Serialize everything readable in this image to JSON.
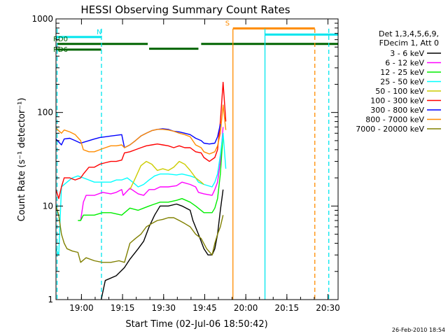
{
  "chart_data": {
    "type": "line",
    "title": "HESSI Observing Summary Count Rates",
    "xlabel": "Start Time (02-Jul-06 18:50:42)",
    "ylabel": "Count Rate (s⁻¹ detector⁻¹)",
    "y_scale": "log",
    "ylim": [
      1,
      1000
    ],
    "x_unit": "minutes after 18:50:42",
    "xlim": [
      0,
      103
    ],
    "x_ticks": [
      {
        "label": "19:00",
        "value": 9.3
      },
      {
        "label": "19:15",
        "value": 24.3
      },
      {
        "label": "19:30",
        "value": 39.3
      },
      {
        "label": "19:45",
        "value": 54.3
      },
      {
        "label": "20:00",
        "value": 69.3
      },
      {
        "label": "20:15",
        "value": 84.3
      },
      {
        "label": "20:30",
        "value": 99.3
      }
    ],
    "y_ticks": [
      {
        "label": "1",
        "value": 1
      },
      {
        "label": "10",
        "value": 10
      },
      {
        "label": "100",
        "value": 100
      },
      {
        "label": "1000",
        "value": 1000
      }
    ],
    "legend": {
      "placement": "right",
      "header": [
        "Det 1,3,4,5,6,9,",
        "FDecim 1, Att 0"
      ],
      "entries": [
        {
          "label": "3 - 6 keV",
          "color": "#000000"
        },
        {
          "label": "6 - 12 keV",
          "color": "#ff00ff"
        },
        {
          "label": "12 - 25 keV",
          "color": "#00ee00"
        },
        {
          "label": "25 - 50 keV",
          "color": "#00ffff"
        },
        {
          "label": "50 - 100 keV",
          "color": "#cccc00"
        },
        {
          "label": "100 - 300 keV",
          "color": "#ff0000"
        },
        {
          "label": "300 - 800 keV",
          "color": "#0000ff"
        },
        {
          "label": "800 - 7000 keV",
          "color": "#ff8c00"
        },
        {
          "label": "7000 - 20000 keV",
          "color": "#808000"
        }
      ]
    },
    "series": [
      {
        "name": "3 - 6 keV",
        "color": "#000000",
        "points": [
          [
            16.5,
            1
          ],
          [
            18,
            1.6
          ],
          [
            22,
            1.8
          ],
          [
            25,
            2.2
          ],
          [
            27,
            2.7
          ],
          [
            30,
            3.5
          ],
          [
            32,
            4.2
          ],
          [
            34,
            6
          ],
          [
            36,
            8
          ],
          [
            38,
            10
          ],
          [
            41,
            10
          ],
          [
            44,
            10.5
          ],
          [
            46,
            10
          ],
          [
            49,
            9
          ],
          [
            50,
            7
          ],
          [
            52,
            5
          ],
          [
            54,
            3.5
          ],
          [
            55.5,
            3
          ],
          [
            57,
            3
          ],
          [
            58,
            3.5
          ],
          [
            59,
            5
          ],
          [
            60,
            9
          ],
          [
            61,
            15
          ]
        ]
      },
      {
        "name": "6 - 12 keV",
        "color": "#ff00ff",
        "points": [
          [
            9,
            7
          ],
          [
            10,
            11
          ],
          [
            11,
            13
          ],
          [
            14,
            13
          ],
          [
            17,
            14
          ],
          [
            20,
            13.5
          ],
          [
            22,
            14
          ],
          [
            24,
            15
          ],
          [
            24.5,
            13
          ],
          [
            27,
            15.5
          ],
          [
            30,
            13.5
          ],
          [
            32,
            13
          ],
          [
            34,
            15
          ],
          [
            36,
            15
          ],
          [
            38,
            16
          ],
          [
            41,
            16
          ],
          [
            44,
            16.5
          ],
          [
            46,
            18
          ],
          [
            49,
            17
          ],
          [
            51,
            16
          ],
          [
            52,
            14
          ],
          [
            54,
            13.5
          ],
          [
            57,
            13
          ],
          [
            58,
            15
          ],
          [
            59,
            18
          ],
          [
            60,
            30
          ],
          [
            61,
            70
          ]
        ]
      },
      {
        "name": "12 - 25 keV",
        "color": "#00ee00",
        "points": [
          [
            8,
            7
          ],
          [
            9,
            7
          ],
          [
            10,
            8
          ],
          [
            14,
            8
          ],
          [
            17,
            8.5
          ],
          [
            20,
            8.5
          ],
          [
            24,
            8
          ],
          [
            27,
            9.5
          ],
          [
            30,
            9
          ],
          [
            32,
            9.5
          ],
          [
            34,
            10
          ],
          [
            36,
            10.5
          ],
          [
            38,
            11
          ],
          [
            41,
            11
          ],
          [
            44,
            11.5
          ],
          [
            46,
            12
          ],
          [
            49,
            11
          ],
          [
            51,
            10
          ],
          [
            54,
            8.5
          ],
          [
            57,
            8.5
          ],
          [
            58,
            9.5
          ],
          [
            59,
            12
          ],
          [
            60,
            22
          ],
          [
            61,
            60
          ]
        ]
      },
      {
        "name": "25 - 50 keV",
        "color": "#00ffff",
        "points": [
          [
            0,
            3.5
          ],
          [
            1,
            3
          ],
          [
            2,
            16
          ],
          [
            4,
            18
          ],
          [
            6,
            20
          ],
          [
            8,
            21
          ],
          [
            10,
            20
          ],
          [
            12,
            19
          ],
          [
            14,
            18
          ],
          [
            17,
            18
          ],
          [
            20,
            18
          ],
          [
            22,
            19
          ],
          [
            24,
            19
          ],
          [
            26,
            20
          ],
          [
            28,
            18
          ],
          [
            30,
            16
          ],
          [
            32,
            17
          ],
          [
            34,
            19
          ],
          [
            36,
            21
          ],
          [
            38,
            22
          ],
          [
            41,
            22
          ],
          [
            44,
            21.5
          ],
          [
            46,
            22
          ],
          [
            49,
            21
          ],
          [
            51,
            20
          ],
          [
            52,
            18
          ],
          [
            54,
            17
          ],
          [
            57,
            16
          ],
          [
            58,
            18
          ],
          [
            59,
            22
          ],
          [
            60,
            35
          ],
          [
            61,
            60
          ],
          [
            62,
            25
          ]
        ]
      },
      {
        "name": "50 - 100 keV",
        "color": "#cccc00",
        "points": [
          [
            27,
            15
          ],
          [
            29,
            20
          ],
          [
            31,
            27
          ],
          [
            33,
            30
          ],
          [
            35,
            28
          ],
          [
            37,
            24
          ],
          [
            39,
            25
          ],
          [
            41,
            24
          ],
          [
            43,
            26
          ],
          [
            45,
            30
          ],
          [
            47,
            28
          ],
          [
            49,
            24
          ],
          [
            51,
            20
          ],
          [
            53,
            18
          ],
          [
            54,
            17
          ]
        ]
      },
      {
        "name": "100 - 300 keV",
        "color": "#ff0000",
        "points": [
          [
            0,
            15
          ],
          [
            1,
            12
          ],
          [
            2,
            16
          ],
          [
            3,
            20
          ],
          [
            5,
            20
          ],
          [
            7,
            19
          ],
          [
            9,
            20
          ],
          [
            10,
            22
          ],
          [
            12,
            26
          ],
          [
            14,
            26
          ],
          [
            16,
            28
          ],
          [
            18,
            29
          ],
          [
            20,
            30
          ],
          [
            22,
            30
          ],
          [
            24,
            31
          ],
          [
            25,
            37
          ],
          [
            27,
            38
          ],
          [
            29,
            40
          ],
          [
            31,
            42
          ],
          [
            33,
            44
          ],
          [
            35,
            45
          ],
          [
            37,
            46
          ],
          [
            39,
            45
          ],
          [
            41,
            44
          ],
          [
            43,
            42
          ],
          [
            45,
            44
          ],
          [
            47,
            42
          ],
          [
            49,
            42
          ],
          [
            51,
            38
          ],
          [
            53,
            37
          ],
          [
            54,
            33
          ],
          [
            56,
            30
          ],
          [
            58,
            33
          ],
          [
            59,
            40
          ],
          [
            60,
            80
          ],
          [
            61,
            210
          ],
          [
            62,
            80
          ]
        ]
      },
      {
        "name": "300 - 800 keV",
        "color": "#0000ff",
        "points": [
          [
            0,
            52
          ],
          [
            2,
            45
          ],
          [
            3,
            52
          ],
          [
            5,
            53
          ],
          [
            7,
            50
          ],
          [
            9,
            47
          ],
          [
            10,
            48
          ],
          [
            12,
            50
          ],
          [
            14,
            52
          ],
          [
            16,
            54
          ],
          [
            18,
            55
          ],
          [
            20,
            56
          ],
          [
            22,
            57
          ],
          [
            24,
            58
          ],
          [
            25,
            42
          ],
          [
            27,
            45
          ],
          [
            29,
            50
          ],
          [
            31,
            56
          ],
          [
            33,
            60
          ],
          [
            35,
            64
          ],
          [
            37,
            66
          ],
          [
            39,
            67
          ],
          [
            41,
            66
          ],
          [
            43,
            63
          ],
          [
            45,
            62
          ],
          [
            47,
            60
          ],
          [
            49,
            58
          ],
          [
            51,
            53
          ],
          [
            53,
            50
          ],
          [
            54,
            47
          ],
          [
            56,
            46
          ],
          [
            58,
            47
          ],
          [
            59,
            55
          ],
          [
            60,
            75
          ]
        ]
      },
      {
        "name": "800 - 7000 keV",
        "color": "#ff8c00",
        "points": [
          [
            0,
            68
          ],
          [
            2,
            60
          ],
          [
            3,
            65
          ],
          [
            5,
            62
          ],
          [
            7,
            58
          ],
          [
            9,
            50
          ],
          [
            10,
            40
          ],
          [
            12,
            38
          ],
          [
            14,
            38
          ],
          [
            16,
            40
          ],
          [
            18,
            42
          ],
          [
            20,
            44
          ],
          [
            22,
            44
          ],
          [
            24,
            45
          ],
          [
            25,
            42
          ],
          [
            27,
            45
          ],
          [
            29,
            50
          ],
          [
            31,
            56
          ],
          [
            33,
            60
          ],
          [
            35,
            64
          ],
          [
            37,
            66
          ],
          [
            39,
            66
          ],
          [
            41,
            65
          ],
          [
            43,
            63
          ],
          [
            45,
            60
          ],
          [
            47,
            58
          ],
          [
            49,
            55
          ],
          [
            51,
            45
          ],
          [
            53,
            42
          ],
          [
            54,
            38
          ],
          [
            56,
            36
          ],
          [
            58,
            38
          ],
          [
            59,
            44
          ],
          [
            60,
            60
          ],
          [
            61,
            120
          ],
          [
            62,
            65
          ]
        ]
      },
      {
        "name": "7000 - 20000 keV",
        "color": "#808000",
        "points": [
          [
            0,
            10
          ],
          [
            1,
            8
          ],
          [
            2,
            5
          ],
          [
            3,
            4
          ],
          [
            4,
            3.5
          ],
          [
            6,
            3.3
          ],
          [
            8,
            3.2
          ],
          [
            9,
            2.5
          ],
          [
            11,
            2.8
          ],
          [
            14,
            2.6
          ],
          [
            17,
            2.5
          ],
          [
            20,
            2.5
          ],
          [
            23,
            2.6
          ],
          [
            25,
            2.5
          ],
          [
            27,
            4
          ],
          [
            29,
            4.5
          ],
          [
            31,
            5
          ],
          [
            33,
            6
          ],
          [
            35,
            6.5
          ],
          [
            37,
            7
          ],
          [
            39,
            7.2
          ],
          [
            41,
            7.5
          ],
          [
            43,
            7.5
          ],
          [
            45,
            7
          ],
          [
            47,
            6.5
          ],
          [
            49,
            6
          ],
          [
            51,
            5
          ],
          [
            53,
            4.5
          ],
          [
            55,
            3.5
          ],
          [
            57,
            3
          ],
          [
            58,
            4
          ],
          [
            59,
            5
          ],
          [
            60,
            6
          ],
          [
            61,
            8
          ]
        ]
      }
    ],
    "vertical_lines": [
      {
        "x": 0.4,
        "color": "#00e5ee",
        "style": "dashed"
      },
      {
        "x": 16.6,
        "color": "#00e5ee",
        "style": "dashed"
      },
      {
        "x": 64.6,
        "color": "#ff8c00",
        "style": "solid"
      },
      {
        "x": 76.3,
        "color": "#00e5ee",
        "style": "solid"
      },
      {
        "x": 94.5,
        "color": "#ff8c00",
        "style": "dashed"
      },
      {
        "x": 99.6,
        "color": "#00e5ee",
        "style": "dashed"
      }
    ],
    "flag_bars": [
      {
        "color": "#00e5ee",
        "value": 640,
        "start": 0,
        "end": 16.6,
        "label": "N"
      },
      {
        "color": "#00e5ee",
        "value": 680,
        "start": 76.3,
        "end": 103
      },
      {
        "color": "#ff8c00",
        "value": 790,
        "start": 64.6,
        "end": 94.5,
        "label": "S"
      },
      {
        "color": "#006400",
        "value": 540,
        "start": 0.5,
        "end": 33.5,
        "label": "RD0"
      },
      {
        "color": "#006400",
        "value": 470,
        "start": 0.5,
        "end": 0.6,
        "label": "RD6"
      },
      {
        "color": "#006400",
        "value": 480,
        "start": 34,
        "end": 52
      },
      {
        "color": "#006400",
        "value": 540,
        "start": 53,
        "end": 103
      },
      {
        "color": "#006400",
        "value": 470,
        "start": 0,
        "end": 16.5
      }
    ]
  },
  "footer": {
    "timestamp": "26-Feb-2010 18:54"
  }
}
